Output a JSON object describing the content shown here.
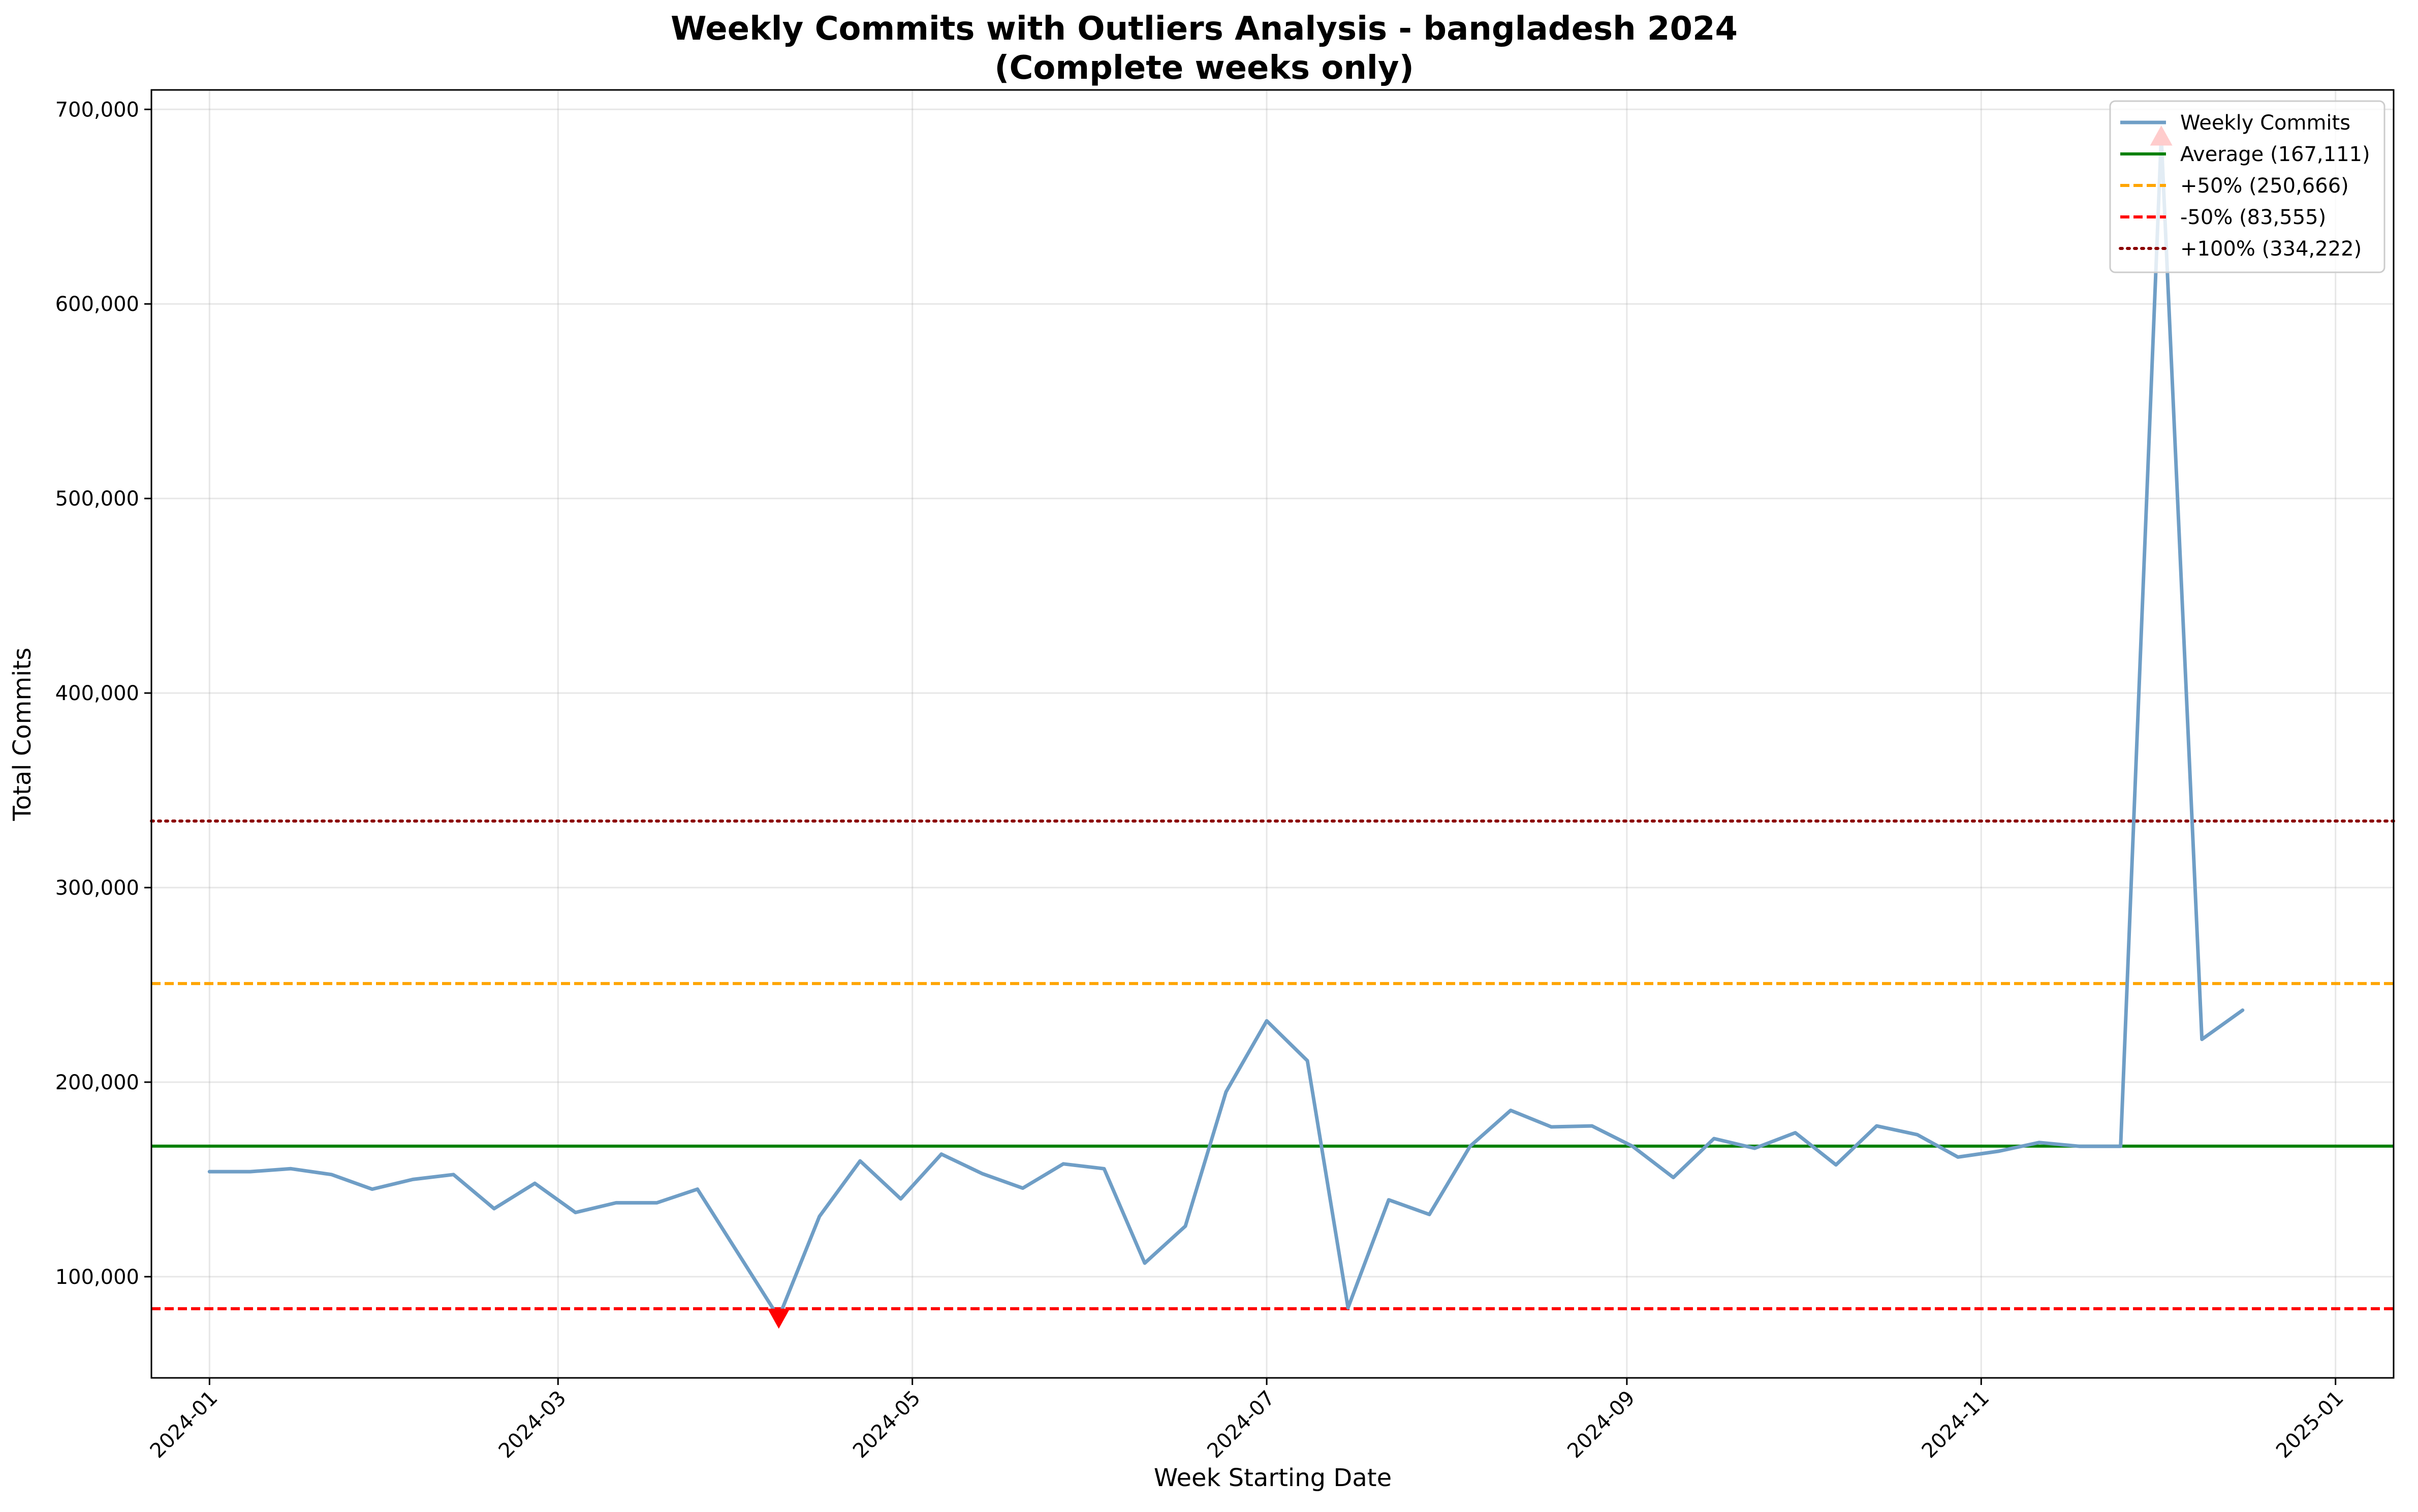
{
  "chart_data": {
    "type": "line",
    "title": "Weekly Commits with Outliers Analysis - bangladesh 2024",
    "subtitle": "(Complete weeks only)",
    "xlabel": "Week Starting Date",
    "ylabel": "Total Commits",
    "ylim": [
      48000,
      710000
    ],
    "xlim": [
      "2023-12-22",
      "2025-01-11"
    ],
    "grid": true,
    "legend_position": "top-right",
    "x_ticks": [
      "2024-01",
      "2024-03",
      "2024-05",
      "2024-07",
      "2024-09",
      "2024-11",
      "2025-01"
    ],
    "y_ticks": [
      {
        "value": 100000,
        "label": "100,000"
      },
      {
        "value": 200000,
        "label": "200,000"
      },
      {
        "value": 300000,
        "label": "300,000"
      },
      {
        "value": 400000,
        "label": "400,000"
      },
      {
        "value": 500000,
        "label": "500,000"
      },
      {
        "value": 600000,
        "label": "600,000"
      },
      {
        "value": 700000,
        "label": "700,000"
      }
    ],
    "series": [
      {
        "name": "Weekly Commits",
        "color": "#6f9ec6",
        "x": [
          "2024-01-01",
          "2024-01-08",
          "2024-01-15",
          "2024-01-22",
          "2024-01-29",
          "2024-02-05",
          "2024-02-12",
          "2024-02-19",
          "2024-02-26",
          "2024-03-04",
          "2024-03-11",
          "2024-03-18",
          "2024-03-25",
          "2024-04-01",
          "2024-04-08",
          "2024-04-15",
          "2024-04-22",
          "2024-04-29",
          "2024-05-06",
          "2024-05-13",
          "2024-05-20",
          "2024-05-27",
          "2024-06-03",
          "2024-06-10",
          "2024-06-17",
          "2024-06-24",
          "2024-07-01",
          "2024-07-08",
          "2024-07-15",
          "2024-07-22",
          "2024-07-29",
          "2024-08-05",
          "2024-08-12",
          "2024-08-19",
          "2024-08-26",
          "2024-09-02",
          "2024-09-09",
          "2024-09-16",
          "2024-09-23",
          "2024-09-30",
          "2024-10-07",
          "2024-10-14",
          "2024-10-21",
          "2024-10-28",
          "2024-11-04",
          "2024-11-11",
          "2024-11-18",
          "2024-11-25",
          "2024-12-02",
          "2024-12-09",
          "2024-12-16"
        ],
        "y": [
          154000,
          154000,
          155500,
          152500,
          145000,
          150000,
          152500,
          135000,
          148000,
          133000,
          138000,
          138000,
          145000,
          112000,
          79000,
          131000,
          159500,
          140000,
          163000,
          153000,
          145500,
          158000,
          155500,
          107000,
          126000,
          195000,
          231500,
          211000,
          84000,
          139500,
          132000,
          167000,
          185500,
          177000,
          177500,
          167000,
          151000,
          171000,
          166000,
          174000,
          157500,
          177500,
          173000,
          161500,
          164500,
          169000,
          167000,
          167000,
          686000,
          222000,
          237000
        ]
      }
    ],
    "reference_lines": [
      {
        "name": "Average (167,111)",
        "value": 167111,
        "color": "#008000",
        "style": "solid"
      },
      {
        "name": "+50% (250,666)",
        "value": 250666,
        "color": "#ffa500",
        "style": "dashed"
      },
      {
        "name": "-50% (83,555)",
        "value": 83555,
        "color": "#ff0000",
        "style": "dashed"
      },
      {
        "name": "+100% (334,222)",
        "value": 334222,
        "color": "#8b0000",
        "style": "dotted"
      }
    ],
    "outlier_markers": [
      {
        "x": "2024-04-08",
        "y": 79000,
        "shape": "triangle-down",
        "color": "#ff0000"
      },
      {
        "x": "2024-12-02",
        "y": 686000,
        "shape": "triangle-up",
        "color": "#ff0000"
      }
    ]
  }
}
